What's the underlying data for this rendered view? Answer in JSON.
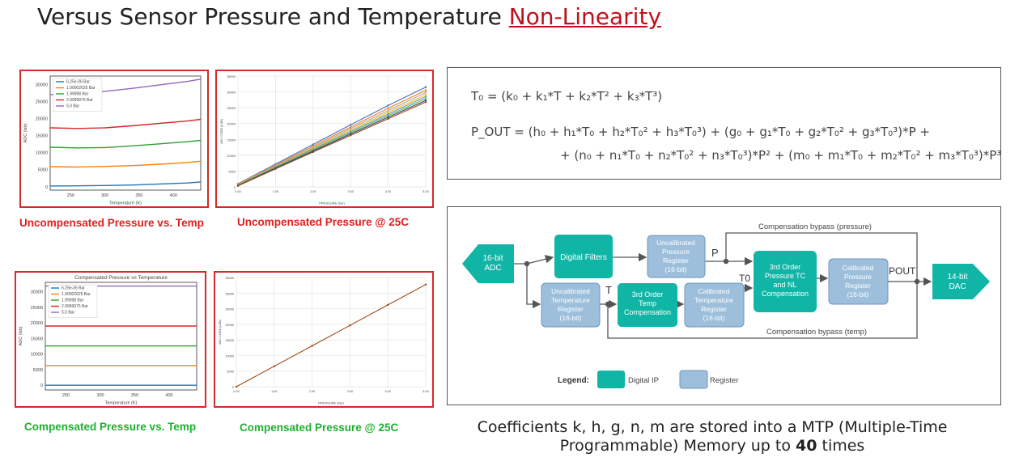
{
  "header": {
    "title_main": "Versus Sensor Pressure and Temperature ",
    "title_highlight": "Non-Linearity"
  },
  "captions": {
    "unc_temp": "Uncompensated Pressure vs. Temp",
    "unc_25c": "Uncompensated Pressure @ 25C",
    "comp_temp": "Compensated Pressure vs. Temp",
    "comp_25c": "Compensated Pressure @ 25C"
  },
  "equations": {
    "t0": "T₀ = (k₀ + k₁*T + k₂*T² + k₃*T³)",
    "pout_line1": "P_OUT = (h₀ + h₁*T₀ + h₂*T₀² + h₃*T₀³) + (g₀ + g₁*T₀ + g₂*T₀² + g₃*T₀³)*P +",
    "pout_line2": "+ (n₀ + n₁*T₀ + n₂*T₀² + n₃*T₀³)*P² + (m₀ + m₁*T₀ + m₂*T₀² + m₃*T₀³)*P³"
  },
  "diagram": {
    "adc": [
      "16-bit",
      "ADC"
    ],
    "digital_filters": "Digital Filters",
    "uncal_pressure": [
      "Uncalibrated",
      "Pressure",
      "Register",
      "(16-bit)"
    ],
    "uncal_temp": [
      "Uncalibrated",
      "Temperature",
      "Register",
      "(16-bit)"
    ],
    "temp_comp": [
      "3rd Order",
      "Temp",
      "Compensation"
    ],
    "cal_temp": [
      "Calibrated",
      "Temperature",
      "Register",
      "(16-bit)"
    ],
    "pressure_comp": [
      "3rd Order",
      "Pressure TC",
      "and NL",
      "Compensation"
    ],
    "cal_pressure": [
      "Calibrated",
      "Pressure",
      "Register",
      "(16-bit)"
    ],
    "dac": [
      "14-bit",
      "DAC"
    ],
    "label_p": "P",
    "label_t": "T",
    "label_t0": "T0",
    "label_pout": "POUT",
    "bypass_pressure": "Compensation bypass (pressure)",
    "bypass_temp": "Compensation bypass (temp)",
    "legend_title": "Legend:",
    "legend_ip": "Digital IP",
    "legend_reg": "Register",
    "colors": {
      "teal": "#10b5a6",
      "blue": "#9dbfdc",
      "blue_border": "#6f96bd"
    }
  },
  "note": {
    "line1": "Coefficients k, h, g, n, m are stored into a MTP (Multiple-Time",
    "line2_a": "Programmable) Memory up to ",
    "line2_b": "40",
    "line2_c": " times"
  },
  "chart_data": [
    {
      "type": "line",
      "title": "",
      "xlabel": "Temperature (K)",
      "ylabel": "ADC (lsb)",
      "xlim": [
        220,
        440
      ],
      "ylim": [
        -1000,
        32500
      ],
      "x_ticks": [
        250,
        300,
        350,
        400
      ],
      "y_ticks": [
        0,
        5000,
        10000,
        15000,
        20000,
        25000,
        30000
      ],
      "legend_position": "top-left",
      "x": [
        220,
        260,
        300,
        340,
        380,
        420,
        440
      ],
      "series": [
        {
          "name": "6.25e-06 Bar",
          "color": "#1f77b4",
          "values": [
            200,
            250,
            350,
            500,
            800,
            1100,
            1400
          ]
        },
        {
          "name": "1.00002625 Bar",
          "color": "#ff7f0e",
          "values": [
            5900,
            5800,
            5950,
            6200,
            6600,
            7100,
            7500
          ]
        },
        {
          "name": "1.99998 Bar",
          "color": "#2ca02c",
          "values": [
            11600,
            11400,
            11500,
            12000,
            12600,
            13200,
            13600
          ]
        },
        {
          "name": "2.9999975 Bar",
          "color": "#d62728",
          "values": [
            17300,
            17100,
            17300,
            17900,
            18600,
            19300,
            19800
          ]
        },
        {
          "name": "5.0 Bar",
          "color": "#9467bd",
          "values": [
            27000,
            27300,
            28000,
            28900,
            29900,
            30900,
            31600
          ]
        }
      ]
    },
    {
      "type": "line",
      "title": "",
      "xlabel": "PRESSURE (bar)",
      "ylabel": "ADC CODE (LSB)",
      "xlim": [
        0,
        5
      ],
      "ylim": [
        0,
        35000
      ],
      "x_ticks": [
        "0.00",
        "1.00",
        "2.00",
        "3.00",
        "4.00",
        "5.00"
      ],
      "y_ticks": [
        0,
        5000,
        10000,
        15000,
        20000,
        25000,
        30000,
        35000
      ],
      "x": [
        0,
        1,
        2,
        3,
        4,
        5
      ],
      "series": [
        {
          "color": "#4472c4",
          "values": [
            1000,
            7200,
            13400,
            19600,
            25700,
            31500
          ]
        },
        {
          "color": "#ed7d31",
          "values": [
            900,
            6900,
            12900,
            18900,
            24800,
            30500
          ]
        },
        {
          "color": "#a5a5a5",
          "values": [
            800,
            6700,
            12500,
            18400,
            24100,
            29800
          ]
        },
        {
          "color": "#ffc000",
          "values": [
            700,
            6500,
            12200,
            17900,
            23500,
            29100
          ]
        },
        {
          "color": "#5b9bd5",
          "values": [
            600,
            6300,
            11900,
            17500,
            23000,
            28500
          ]
        },
        {
          "color": "#70ad47",
          "values": [
            500,
            6100,
            11600,
            17100,
            22500,
            27900
          ]
        },
        {
          "color": "#264478",
          "values": [
            400,
            5900,
            11300,
            16700,
            22000,
            27300
          ]
        },
        {
          "color": "#9e480e",
          "values": [
            300,
            5700,
            11000,
            16300,
            21500,
            26800
          ]
        }
      ]
    },
    {
      "type": "line",
      "title": "Compensated Pressure vs Temperature",
      "xlabel": "Temperature (K)",
      "ylabel": "ADC (lsb)",
      "xlim": [
        220,
        440
      ],
      "ylim": [
        -1500,
        33000
      ],
      "x_ticks": [
        250,
        300,
        350,
        400
      ],
      "y_ticks": [
        0,
        5000,
        10000,
        15000,
        20000,
        25000,
        30000
      ],
      "legend_position": "top-left",
      "x": [
        220,
        440
      ],
      "series": [
        {
          "name": "6.25e-06 Bar",
          "color": "#1f77b4",
          "values": [
            0,
            0
          ]
        },
        {
          "name": "1.00002625 Bar",
          "color": "#ff7f0e",
          "values": [
            6300,
            6300
          ]
        },
        {
          "name": "1.99998 Bar",
          "color": "#2ca02c",
          "values": [
            12600,
            12600
          ]
        },
        {
          "name": "2.9999975 Bar",
          "color": "#d62728",
          "values": [
            19000,
            19000
          ]
        },
        {
          "name": "5.0 Bar",
          "color": "#9467bd",
          "values": [
            31800,
            31800
          ]
        }
      ]
    },
    {
      "type": "line",
      "title": "",
      "xlabel": "PRESSURE (bar)",
      "ylabel": "ADC CODE (LSB)",
      "xlim": [
        0,
        5
      ],
      "ylim": [
        0,
        35000
      ],
      "x_ticks": [
        "0.00",
        "1.00",
        "2.00",
        "3.00",
        "4.00",
        "5.00"
      ],
      "y_ticks": [
        0,
        5000,
        10000,
        15000,
        20000,
        25000,
        30000,
        35000
      ],
      "x": [
        0,
        1,
        2,
        3,
        4,
        5
      ],
      "series": [
        {
          "color": "#9e480e",
          "values": [
            0,
            6550,
            13100,
            19650,
            26200,
            32750
          ]
        }
      ]
    }
  ]
}
